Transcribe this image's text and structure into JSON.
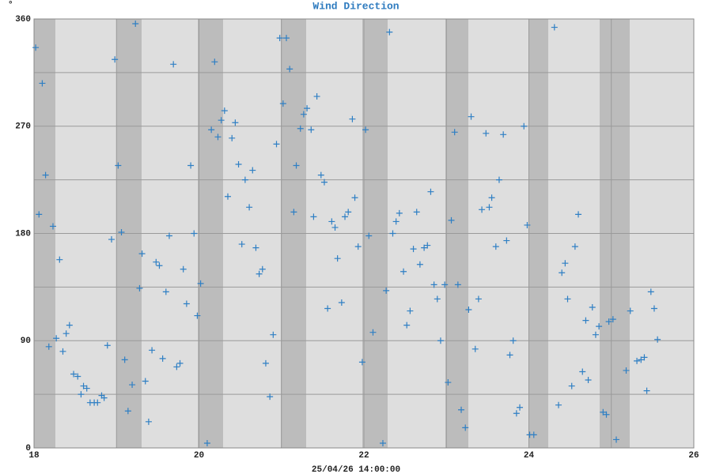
{
  "chart_data": {
    "type": "scatter",
    "title": "Wind Direction",
    "y_label": "°",
    "x_label": "25/04/26 14:00:00",
    "color": "#2e7fc4",
    "xlim": [
      18,
      26
    ],
    "xticks": [
      18,
      20,
      22,
      24,
      26
    ],
    "xminor": [
      19,
      21,
      23,
      25
    ],
    "ylim": [
      0,
      360
    ],
    "yticks": [
      0,
      90,
      180,
      270,
      360
    ],
    "yminor": [
      45,
      135,
      225,
      315
    ],
    "grid": true,
    "x": [
      18.02,
      18.06,
      18.1,
      18.14,
      18.18,
      18.23,
      18.27,
      18.31,
      18.35,
      18.39,
      18.43,
      18.48,
      18.53,
      18.57,
      18.6,
      18.64,
      18.68,
      18.73,
      18.77,
      18.82,
      18.85,
      18.89,
      18.94,
      18.98,
      19.02,
      19.06,
      19.1,
      19.14,
      19.19,
      19.23,
      19.28,
      19.31,
      19.35,
      19.39,
      19.43,
      19.48,
      19.52,
      19.56,
      19.6,
      19.64,
      19.69,
      19.73,
      19.77,
      19.81,
      19.85,
      19.9,
      19.94,
      19.98,
      20.02,
      20.1,
      20.15,
      20.19,
      20.23,
      20.27,
      20.31,
      20.35,
      20.4,
      20.44,
      20.48,
      20.52,
      20.56,
      20.61,
      20.65,
      20.69,
      20.73,
      20.77,
      20.81,
      20.86,
      20.9,
      20.94,
      20.98,
      21.02,
      21.06,
      21.1,
      21.15,
      21.18,
      21.23,
      21.27,
      21.31,
      21.36,
      21.39,
      21.43,
      21.48,
      21.52,
      21.56,
      21.61,
      21.65,
      21.68,
      21.73,
      21.77,
      21.81,
      21.86,
      21.89,
      21.93,
      21.98,
      22.02,
      22.06,
      22.11,
      22.23,
      22.27,
      22.31,
      22.35,
      22.39,
      22.43,
      22.48,
      22.52,
      22.56,
      22.6,
      22.64,
      22.68,
      22.73,
      22.77,
      22.81,
      22.85,
      22.89,
      22.93,
      22.98,
      23.02,
      23.06,
      23.1,
      23.14,
      23.18,
      23.23,
      23.27,
      23.3,
      23.35,
      23.39,
      23.43,
      23.48,
      23.52,
      23.55,
      23.6,
      23.64,
      23.69,
      23.73,
      23.77,
      23.81,
      23.85,
      23.89,
      23.94,
      23.98,
      24.01,
      24.06,
      24.31,
      24.36,
      24.4,
      24.44,
      24.47,
      24.52,
      24.56,
      24.6,
      24.65,
      24.69,
      24.72,
      24.77,
      24.81,
      24.85,
      24.9,
      24.94,
      24.97,
      25.02,
      25.06,
      25.18,
      25.23,
      25.31,
      25.36,
      25.4,
      25.43,
      25.48,
      25.52,
      25.56
    ],
    "y": [
      336,
      196,
      306,
      229,
      85,
      186,
      92,
      158,
      81,
      96,
      103,
      62,
      60,
      45,
      52,
      50,
      38,
      38,
      38,
      44,
      42,
      86,
      175,
      326,
      237,
      181,
      74,
      31,
      53,
      356,
      134,
      163,
      56,
      22,
      82,
      156,
      153,
      75,
      131,
      178,
      322,
      68,
      71,
      150,
      121,
      237,
      180,
      111,
      138,
      4,
      267,
      324,
      261,
      275,
      283,
      211,
      260,
      273,
      238,
      171,
      225,
      202,
      233,
      168,
      146,
      150,
      71,
      43,
      95,
      255,
      344,
      289,
      344,
      318,
      198,
      237,
      268,
      280,
      285,
      267,
      194,
      295,
      229,
      223,
      117,
      190,
      185,
      159,
      122,
      194,
      198,
      276,
      210,
      169,
      72,
      267,
      178,
      97,
      4,
      132,
      349,
      180,
      190,
      197,
      148,
      103,
      115,
      167,
      198,
      154,
      168,
      170,
      215,
      137,
      125,
      90,
      137,
      55,
      191,
      265,
      137,
      32,
      17,
      116,
      278,
      83,
      125,
      200,
      264,
      202,
      210,
      169,
      225,
      263,
      174,
      78,
      90,
      29,
      34,
      270,
      187,
      11,
      11,
      353,
      36,
      147,
      155,
      125,
      52,
      169,
      196,
      64,
      107,
      57,
      118,
      95,
      102,
      30,
      28,
      106,
      108,
      7,
      65,
      115,
      73,
      74,
      76,
      48,
      131,
      117,
      91
    ]
  }
}
